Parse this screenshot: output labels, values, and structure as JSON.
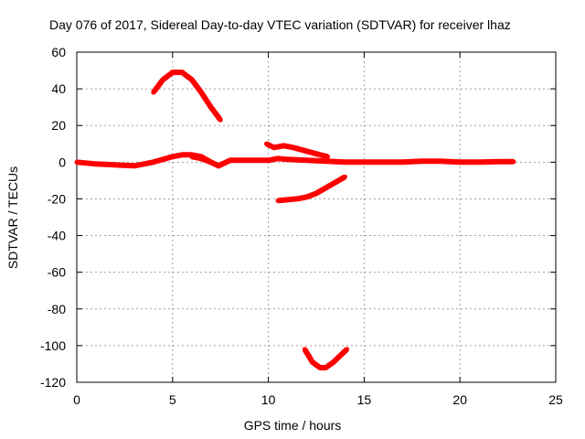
{
  "chart_data": {
    "type": "scatter",
    "title": "Day 076 of 2017, Sidereal Day-to-day VTEC variation (SDTVAR) for receiver lhaz",
    "xlabel": "GPS time / hours",
    "ylabel": "SDTVAR / TECUs",
    "xlim": [
      0,
      25
    ],
    "ylim": [
      -120,
      60
    ],
    "xticks": [
      "0",
      "5",
      "10",
      "15",
      "20",
      "25"
    ],
    "yticks": [
      "-120",
      "-100",
      "-80",
      "-60",
      "-40",
      "-20",
      "0",
      "20",
      "40",
      "60"
    ],
    "grid": true,
    "color": "#ff0000",
    "series": [
      {
        "name": "baseline",
        "x": [
          0,
          1,
          2,
          3,
          4,
          5,
          5.5,
          6,
          6.5,
          7,
          7.4,
          8,
          9,
          10,
          10.5,
          11,
          12,
          13,
          14,
          15,
          16,
          17,
          18,
          19,
          20,
          21,
          22,
          22.8
        ],
        "y": [
          0,
          -1,
          -1.5,
          -2,
          0,
          3,
          4,
          4,
          3,
          0,
          -2,
          1,
          1,
          1,
          2,
          1.5,
          1,
          0.5,
          0,
          0,
          0,
          0,
          0.5,
          0.5,
          0,
          0,
          0.3,
          0.3
        ]
      },
      {
        "name": "arc-peak",
        "x": [
          4,
          4.5,
          5,
          5.5,
          6,
          6.5,
          7,
          7.5
        ],
        "y": [
          38,
          45,
          49,
          49,
          45,
          38,
          30,
          23
        ]
      },
      {
        "name": "arc-mid-dip",
        "x": [
          6,
          6.5,
          7,
          7.4,
          7.8
        ],
        "y": [
          3,
          2,
          0,
          -2,
          0
        ]
      },
      {
        "name": "arc-upper-right",
        "x": [
          9.9,
          10.3,
          10.8,
          11.3,
          12,
          12.7,
          13.1
        ],
        "y": [
          10,
          8,
          9,
          8,
          6,
          4,
          3
        ]
      },
      {
        "name": "arc-lower-right",
        "x": [
          10.5,
          11.5,
          12,
          12.5,
          13,
          13.5,
          14
        ],
        "y": [
          -21,
          -20,
          -19,
          -17,
          -14,
          -11,
          -8
        ]
      },
      {
        "name": "arc-bottom",
        "x": [
          11.9,
          12.3,
          12.7,
          13,
          13.4,
          13.8,
          14.1
        ],
        "y": [
          -102,
          -109,
          -112,
          -112,
          -109,
          -105,
          -102
        ]
      }
    ]
  }
}
